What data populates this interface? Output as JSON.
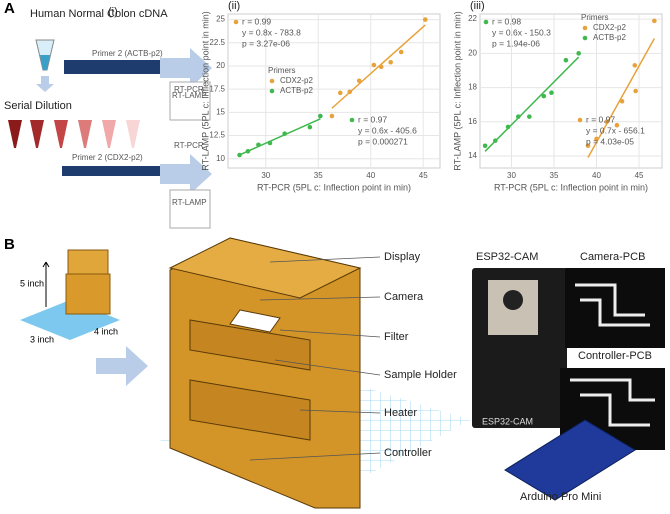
{
  "chart_data": [
    {
      "type": "scatter",
      "panel": "(ii)",
      "xlabel": "RT-PCR (5PL c: Inflection point in min)",
      "ylabel": "RT-LAMP (5PL c: Inflection point in min)",
      "xlim": [
        26.4,
        46.6
      ],
      "ylim": [
        9,
        25.6
      ],
      "xticks": [
        30,
        35,
        40,
        45
      ],
      "yticks": [
        10,
        12.5,
        15,
        17.5,
        20,
        22.5,
        25
      ],
      "grid": true,
      "legend_title": "Primers",
      "legend": "center left",
      "series": [
        {
          "name": "CDX2-p2",
          "color": "#e8a23c",
          "x": [
            36.3,
            37.1,
            38.0,
            38.9,
            40.3,
            41.0,
            41.9,
            42.9,
            45.2
          ],
          "values": [
            14.6,
            17.1,
            17.2,
            18.4,
            20.1,
            19.9,
            20.4,
            21.5,
            25.0
          ]
        },
        {
          "name": "ACTB-p2",
          "color": "#3fb94e",
          "x": [
            27.5,
            28.3,
            29.3,
            30.4,
            31.8,
            34.2,
            35.2
          ],
          "values": [
            10.4,
            10.8,
            11.5,
            11.7,
            12.7,
            13.4,
            14.6
          ]
        }
      ],
      "annotations": [
        [
          "r = 0.99",
          "y = 0.8x - 783.8",
          "p = 3.27e-06"
        ],
        [
          "r = 0.97",
          "y = 0.6x - 405.6",
          "p = 0.000271"
        ]
      ]
    },
    {
      "type": "scatter",
      "panel": "(iii)",
      "xlabel": "RT-PCR (5PL c: Inflection point in min)",
      "ylabel": "RT-LAMP (5PL c: Inflection point in min)",
      "xlim": [
        26.3,
        47.7
      ],
      "ylim": [
        13.3,
        22.3
      ],
      "xticks": [
        30,
        35,
        40,
        45
      ],
      "yticks": [
        14,
        16,
        18,
        20,
        22
      ],
      "grid": true,
      "legend_title": "Primers",
      "legend": "upper center",
      "series": [
        {
          "name": "CDX2-p2",
          "color": "#e8a23c",
          "x": [
            39.0,
            40.0,
            41.2,
            42.4,
            43.0,
            44.5,
            44.6,
            46.8
          ],
          "values": [
            14.6,
            15.0,
            16.0,
            15.8,
            17.2,
            19.3,
            17.8,
            21.9
          ]
        },
        {
          "name": "ACTB-p2",
          "color": "#3fb94e",
          "x": [
            26.9,
            28.1,
            29.6,
            30.8,
            32.1,
            33.8,
            34.7,
            36.4,
            37.9
          ],
          "values": [
            14.6,
            14.9,
            15.7,
            16.3,
            16.3,
            17.5,
            17.7,
            19.6,
            20.0
          ]
        }
      ],
      "annotations": [
        [
          "r = 0.97",
          "y = 0.7x - 656.1",
          "p = 4.03e-05"
        ],
        [
          "r = 0.98",
          "y = 0.6x - 150.3",
          "p = 1.94e-06"
        ]
      ]
    }
  ],
  "panel_a": {
    "label": "A",
    "sub": "(i)",
    "source": "Human Normal Colon cDNA",
    "primer1": "Primer 2 (ACTB-p2)",
    "dilution": "Serial Dilution",
    "primer2": "Primer 2 (CDX2-p2)",
    "pcr": "RT-PCR",
    "lamp": "RT-LAMP"
  },
  "panel_b": {
    "label": "B",
    "dims": [
      "5 inch",
      "4 inch",
      "3 inch"
    ],
    "parts": [
      "Display",
      "Camera",
      "Filter",
      "Sample Holder",
      "Heater",
      "Controller"
    ],
    "boards": {
      "esp": "ESP32-CAM",
      "esp_print": "ESP32-CAM",
      "camera_pcb": "Camera-PCB",
      "controller_pcb": "Controller-PCB",
      "arduino": "Arduino Pro Mini"
    }
  }
}
